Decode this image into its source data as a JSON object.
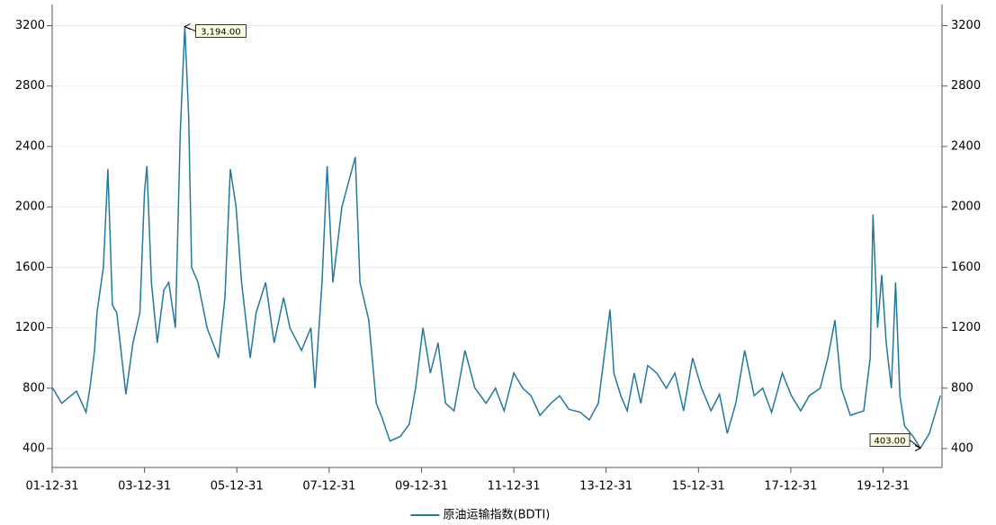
{
  "chart_data": {
    "type": "line",
    "x": [
      "02-01-05",
      "02-03-15",
      "02-07-10",
      "02-09-25",
      "02-10-25",
      "02-12-01",
      "02-12-20",
      "03-02-10",
      "03-03-15",
      "03-04-20",
      "03-05-25",
      "03-08-05",
      "03-10-01",
      "03-11-25",
      "03-12-31",
      "04-01-20",
      "04-02-25",
      "04-04-10",
      "04-06-01",
      "04-07-10",
      "04-09-01",
      "04-10-10",
      "04-11-15",
      "04-12-15",
      "05-01-08",
      "05-02-28",
      "05-05-08",
      "05-08-08",
      "05-09-28",
      "05-11-10",
      "05-12-25",
      "06-02-08",
      "06-04-15",
      "06-06-01",
      "06-08-15",
      "06-10-22",
      "07-01-05",
      "07-02-25",
      "07-05-25",
      "07-08-08",
      "07-09-10",
      "07-11-05",
      "07-12-15",
      "08-01-30",
      "08-04-10",
      "08-07-25",
      "08-09-01",
      "08-11-10",
      "09-01-08",
      "09-02-25",
      "09-04-25",
      "09-07-15",
      "09-09-25",
      "09-11-15",
      "10-01-12",
      "10-03-10",
      "10-05-10",
      "10-07-08",
      "10-09-15",
      "10-12-10",
      "11-02-28",
      "11-05-25",
      "11-08-08",
      "11-10-15",
      "12-01-01",
      "12-03-10",
      "12-05-15",
      "12-07-25",
      "12-10-20",
      "12-12-28",
      "13-03-10",
      "13-06-10",
      "13-08-20",
      "13-10-30",
      "14-02-01",
      "14-03-01",
      "14-04-25",
      "14-06-15",
      "14-08-10",
      "14-10-01",
      "14-11-25",
      "15-02-05",
      "15-04-20",
      "15-06-28",
      "15-09-05",
      "15-11-15",
      "16-01-25",
      "16-04-08",
      "16-06-15",
      "16-08-15",
      "16-10-22",
      "17-01-01",
      "17-03-15",
      "17-05-22",
      "17-08-01",
      "17-10-25",
      "18-01-05",
      "18-03-18",
      "18-05-25",
      "18-08-20",
      "18-10-20",
      "18-12-15",
      "19-02-05",
      "19-04-15",
      "19-07-30",
      "19-09-20",
      "19-10-12",
      "19-11-18",
      "19-12-20",
      "20-01-25",
      "20-03-05",
      "20-04-08",
      "20-05-12",
      "20-06-18",
      "20-08-25",
      "20-10-22",
      "21-01-01",
      "21-03-28"
    ],
    "series": [
      {
        "name": "原油运输指数(BDTI)",
        "color": "#23799c",
        "values": [
          800,
          700,
          780,
          640,
          800,
          1050,
          1300,
          1600,
          2250,
          1350,
          1300,
          760,
          1100,
          1300,
          2100,
          2270,
          1500,
          1100,
          1450,
          1500,
          1200,
          2500,
          3194,
          2600,
          1600,
          1500,
          1200,
          1000,
          1400,
          2250,
          2000,
          1500,
          1000,
          1300,
          1500,
          1100,
          1400,
          1200,
          1050,
          1200,
          800,
          1500,
          2270,
          1500,
          2000,
          2330,
          1500,
          1250,
          700,
          600,
          450,
          480,
          560,
          800,
          1200,
          900,
          1100,
          700,
          650,
          1050,
          800,
          700,
          800,
          650,
          900,
          800,
          750,
          620,
          700,
          750,
          660,
          640,
          590,
          700,
          1320,
          900,
          750,
          650,
          900,
          700,
          950,
          900,
          800,
          900,
          650,
          1000,
          800,
          650,
          760,
          500,
          700,
          1050,
          750,
          800,
          640,
          900,
          750,
          650,
          750,
          800,
          1000,
          1250,
          800,
          620,
          650,
          1000,
          1950,
          1200,
          1550,
          1100,
          800,
          1500,
          750,
          550,
          480,
          403,
          500,
          750
        ]
      }
    ],
    "xlim": [
      "01-12-31",
      "21-04-10"
    ],
    "xticks": [
      "01-12-31",
      "03-12-31",
      "05-12-31",
      "07-12-31",
      "09-12-31",
      "11-12-31",
      "13-12-31",
      "15-12-31",
      "17-12-31",
      "19-12-31"
    ],
    "ylim": [
      275,
      3340
    ],
    "yticks": [
      400,
      800,
      1200,
      1600,
      2000,
      2400,
      2800,
      3200
    ],
    "grid": true,
    "annotations": [
      {
        "label": "3,194.00",
        "x": "04-11-15",
        "value": 3194
      },
      {
        "label": "403.00",
        "x": "20-10-22",
        "value": 403
      }
    ],
    "legend": "bottom"
  }
}
